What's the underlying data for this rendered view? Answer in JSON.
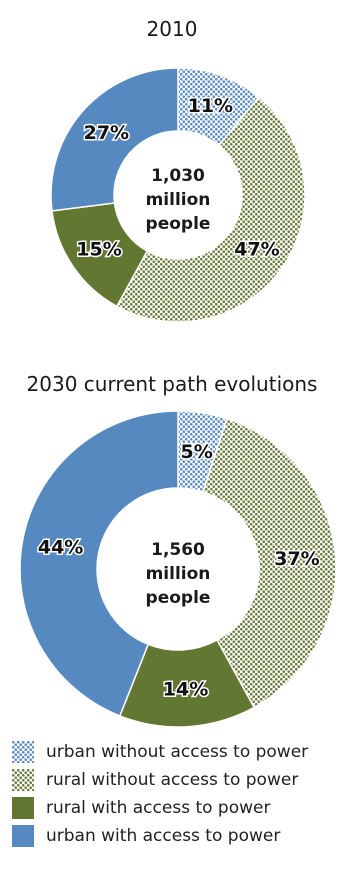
{
  "colors": {
    "urban_without": "#5b8ec9",
    "rural_without": "#6d7f3e",
    "rural_with": "#627731",
    "urban_with": "#5589bf"
  },
  "legend": [
    {
      "key": "urban_without",
      "label": "urban without access to power",
      "pattern": "pat-urban"
    },
    {
      "key": "rural_without",
      "label": "rural without access to power",
      "pattern": "pat-rural"
    },
    {
      "key": "rural_with",
      "label": "rural with access to power",
      "pattern": null
    },
    {
      "key": "urban_with",
      "label": "urban with access to power",
      "pattern": null
    }
  ],
  "chart_data": [
    {
      "type": "pie",
      "title": "2010",
      "center_text": [
        "1,030",
        "million",
        "people"
      ],
      "categories": [
        "urban without access to power",
        "rural without access to power",
        "rural with access to power",
        "urban with access to power"
      ],
      "values": [
        11,
        47,
        15,
        27
      ],
      "labels": [
        "11%",
        "47%",
        "15%",
        "27%"
      ]
    },
    {
      "type": "pie",
      "title": "2030 current path evolutions",
      "center_text": [
        "1,560",
        "million",
        "people"
      ],
      "categories": [
        "urban without access to power",
        "rural without access to power",
        "rural with access to power",
        "urban with access to power"
      ],
      "values": [
        5,
        37,
        14,
        44
      ],
      "labels": [
        "5%",
        "37%",
        "14%",
        "44%"
      ]
    }
  ]
}
